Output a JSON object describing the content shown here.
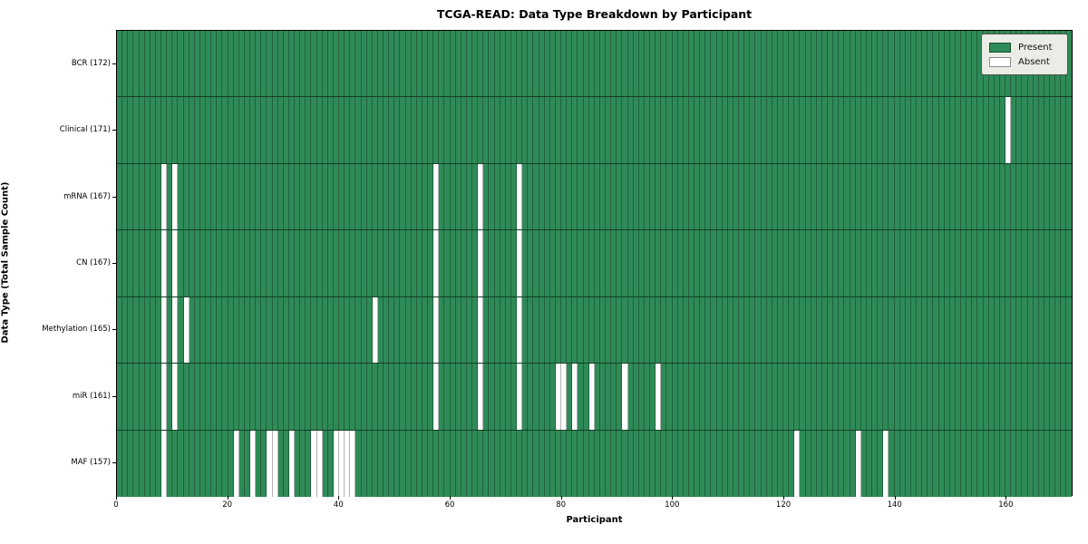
{
  "chart_data": {
    "type": "heatmap",
    "title": "TCGA-READ: Data Type Breakdown by Participant",
    "xlabel": "Participant",
    "ylabel": "Data Type (Total Sample Count)",
    "n_participants": 172,
    "x_ticks": [
      0,
      20,
      40,
      60,
      80,
      100,
      120,
      140,
      160
    ],
    "colors": {
      "present": "#2e8b57",
      "absent": "#ffffff"
    },
    "legend_position": "upper right",
    "legend": [
      {
        "label": "Present",
        "color": "#2e8b57"
      },
      {
        "label": "Absent",
        "color": "#ffffff"
      }
    ],
    "rows": [
      {
        "label": "BCR (172)",
        "total": 172,
        "absent": []
      },
      {
        "label": "Clinical (171)",
        "total": 171,
        "absent": [
          160
        ]
      },
      {
        "label": "mRNA (167)",
        "total": 167,
        "absent": [
          8,
          10,
          57,
          65,
          72
        ]
      },
      {
        "label": "CN (167)",
        "total": 167,
        "absent": [
          8,
          10,
          57,
          65,
          72
        ]
      },
      {
        "label": "Methylation (165)",
        "total": 165,
        "absent": [
          8,
          10,
          12,
          46,
          57,
          65,
          72
        ]
      },
      {
        "label": "miR (161)",
        "total": 161,
        "absent": [
          8,
          10,
          57,
          65,
          72,
          79,
          80,
          82,
          85,
          91,
          97
        ]
      },
      {
        "label": "MAF (157)",
        "total": 157,
        "absent": [
          8,
          21,
          24,
          27,
          28,
          31,
          35,
          36,
          39,
          40,
          41,
          42,
          122,
          133,
          138
        ]
      }
    ]
  }
}
